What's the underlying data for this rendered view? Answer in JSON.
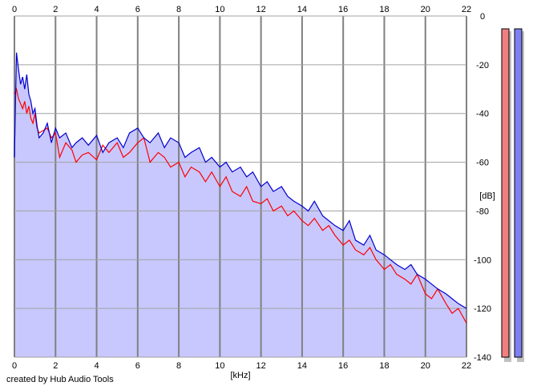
{
  "app": {
    "credit": "created by Hub Audio Tools"
  },
  "colors": {
    "background": "#ffffff",
    "plot_fill": "#c8c8ff",
    "grid": "#a0a0a0",
    "grid_major": "#808080",
    "channel_left": "#ff0000",
    "channel_right": "#0000cc",
    "meter_left": "#f08080",
    "meter_right": "#8080f0",
    "meter_shadow": "#c0c0c0"
  },
  "chart_data": {
    "type": "line",
    "title": "",
    "xlabel": "[kHz]",
    "ylabel": "[dB]",
    "xlim": [
      0,
      22
    ],
    "ylim": [
      -140,
      0
    ],
    "x_ticks": [
      "0",
      "2",
      "4",
      "6",
      "8",
      "10",
      "12",
      "14",
      "16",
      "18",
      "20",
      "22"
    ],
    "y_ticks": [
      "0",
      "-20",
      "-40",
      "-60",
      "-80",
      "-100",
      "-120",
      "-140"
    ],
    "grid": true,
    "filled_area_under_right_channel": true,
    "series": [
      {
        "color": "#ff0000",
        "x": [
          0,
          0.1,
          0.2,
          0.3,
          0.4,
          0.5,
          0.6,
          0.7,
          0.8,
          0.9,
          1.0,
          1.1,
          1.2,
          1.4,
          1.6,
          1.8,
          2.0,
          2.2,
          2.5,
          2.8,
          3.0,
          3.3,
          3.6,
          4.0,
          4.3,
          4.6,
          5.0,
          5.3,
          5.6,
          6.0,
          6.3,
          6.6,
          7.0,
          7.3,
          7.6,
          8.0,
          8.3,
          8.6,
          9.0,
          9.3,
          9.6,
          10.0,
          10.3,
          10.6,
          11.0,
          11.3,
          11.6,
          12.0,
          12.3,
          12.6,
          13.0,
          13.3,
          13.6,
          14.0,
          14.3,
          14.6,
          15.0,
          15.3,
          15.6,
          16.0,
          16.3,
          16.6,
          17.0,
          17.3,
          17.6,
          18.0,
          18.3,
          18.6,
          19.0,
          19.3,
          19.6,
          20.0,
          20.3,
          20.6,
          21.0,
          21.3,
          21.6,
          22.0
        ],
        "y": [
          -32,
          -30,
          -34,
          -36,
          -38,
          -35,
          -40,
          -37,
          -42,
          -44,
          -40,
          -46,
          -48,
          -47,
          -46,
          -50,
          -48,
          -58,
          -52,
          -55,
          -60,
          -57,
          -56,
          -59,
          -53,
          -56,
          -52,
          -58,
          -56,
          -52,
          -50,
          -60,
          -56,
          -58,
          -62,
          -60,
          -66,
          -62,
          -64,
          -68,
          -64,
          -70,
          -66,
          -72,
          -74,
          -70,
          -76,
          -77,
          -75,
          -80,
          -78,
          -82,
          -80,
          -84,
          -86,
          -83,
          -88,
          -86,
          -90,
          -94,
          -92,
          -96,
          -98,
          -95,
          -100,
          -104,
          -102,
          -106,
          -108,
          -110,
          -106,
          -114,
          -116,
          -112,
          -118,
          -122,
          -120,
          -126
        ]
      },
      {
        "color": "#0000cc",
        "x": [
          0,
          0.1,
          0.2,
          0.3,
          0.4,
          0.5,
          0.6,
          0.7,
          0.8,
          0.9,
          1.0,
          1.1,
          1.2,
          1.4,
          1.6,
          1.8,
          2.0,
          2.2,
          2.5,
          2.8,
          3.0,
          3.3,
          3.6,
          4.0,
          4.3,
          4.6,
          5.0,
          5.3,
          5.6,
          6.0,
          6.3,
          6.6,
          7.0,
          7.3,
          7.6,
          8.0,
          8.3,
          8.6,
          9.0,
          9.3,
          9.6,
          10.0,
          10.3,
          10.6,
          11.0,
          11.3,
          11.6,
          12.0,
          12.3,
          12.6,
          13.0,
          13.3,
          13.6,
          14.0,
          14.3,
          14.6,
          15.0,
          15.3,
          15.6,
          16.0,
          16.3,
          16.6,
          17.0,
          17.3,
          17.6,
          18.0,
          18.3,
          18.6,
          19.0,
          19.3,
          19.6,
          20.0,
          20.3,
          20.6,
          21.0,
          21.3,
          21.6,
          22.0
        ],
        "y": [
          -58,
          -15,
          -22,
          -28,
          -25,
          -30,
          -24,
          -32,
          -35,
          -40,
          -38,
          -45,
          -50,
          -48,
          -44,
          -52,
          -46,
          -50,
          -48,
          -54,
          -52,
          -50,
          -53,
          -49,
          -56,
          -52,
          -50,
          -54,
          -48,
          -46,
          -50,
          -52,
          -48,
          -54,
          -50,
          -52,
          -58,
          -56,
          -54,
          -60,
          -58,
          -62,
          -60,
          -64,
          -62,
          -66,
          -64,
          -70,
          -68,
          -72,
          -70,
          -74,
          -76,
          -78,
          -80,
          -76,
          -82,
          -84,
          -86,
          -88,
          -84,
          -92,
          -94,
          -90,
          -96,
          -98,
          -100,
          -102,
          -104,
          -102,
          -106,
          -108,
          -110,
          -112,
          -114,
          -116,
          -118,
          -120
        ]
      }
    ]
  },
  "meters": {
    "left_level_percent": 100,
    "right_level_percent": 100
  }
}
